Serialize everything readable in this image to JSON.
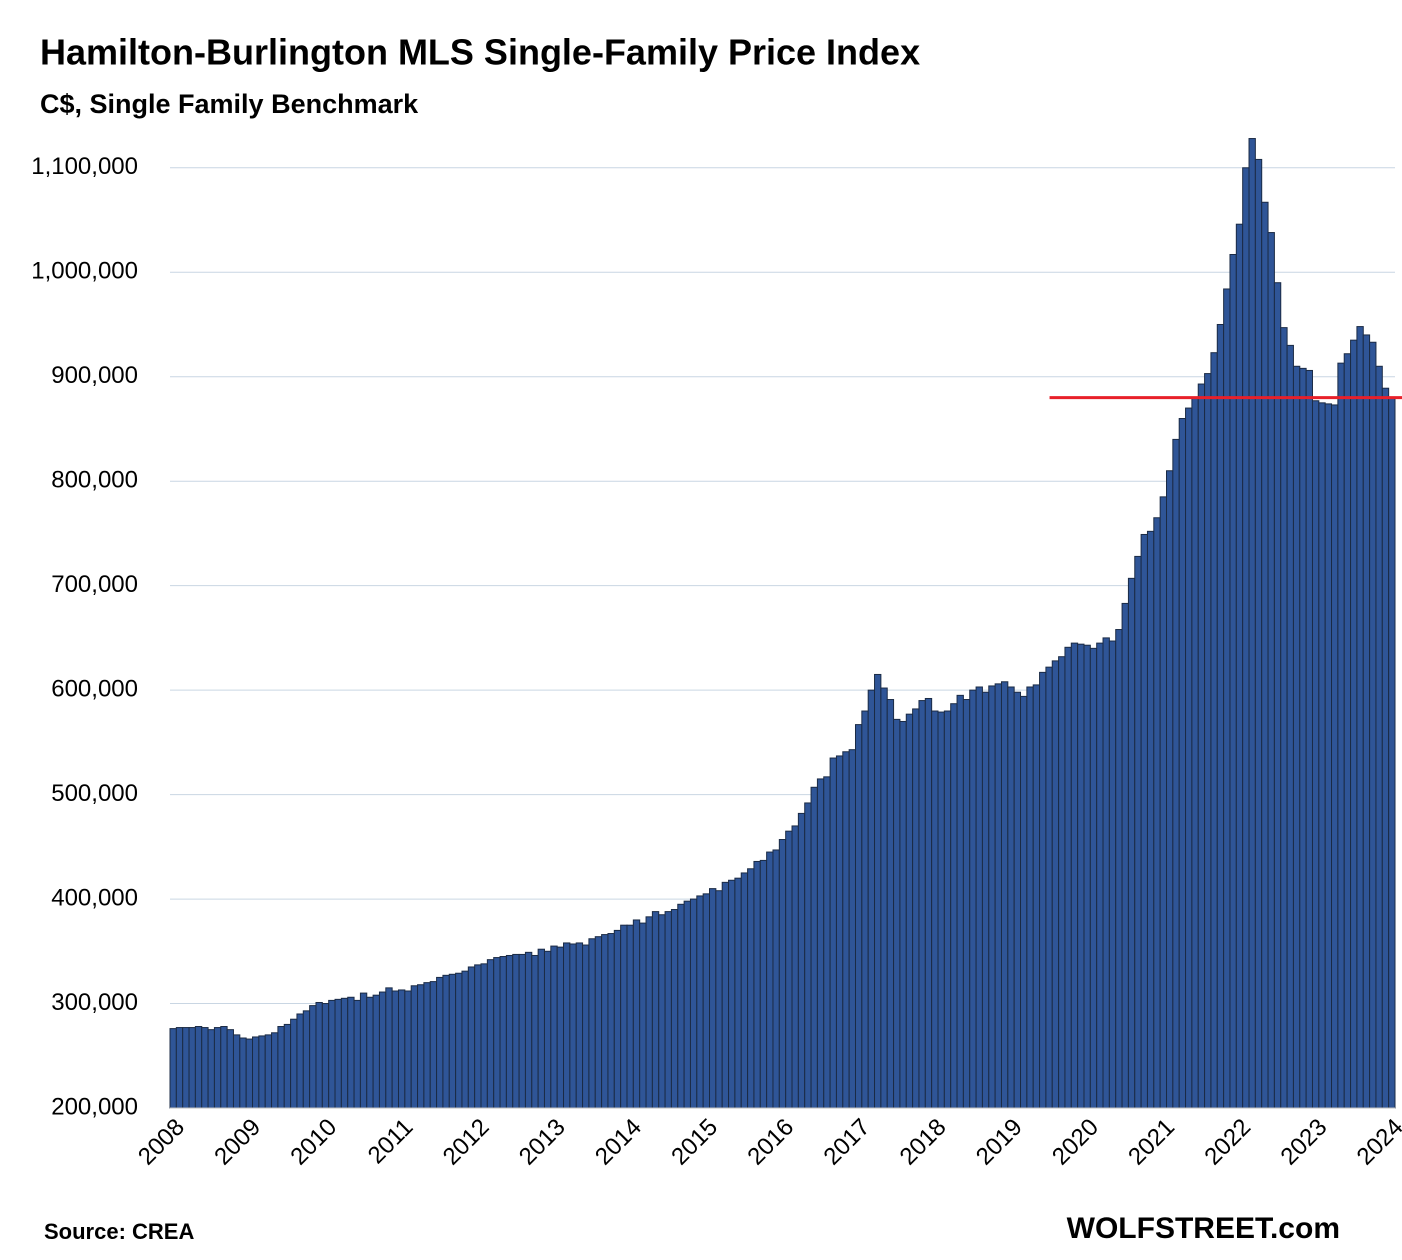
{
  "chart_data": {
    "type": "bar",
    "title": "Hamilton-Burlington MLS Single-Family Price Index",
    "subtitle": "C$, Single Family Benchmark",
    "source": "Source: CREA",
    "brand": "WOLFSTREET.com",
    "color": "#2f5597",
    "edge_color": "#1b2b45",
    "grid": true,
    "reference_line": {
      "value": 880000,
      "color": "#e8202a"
    },
    "ylim": [
      200000,
      1140000
    ],
    "yticks": [
      {
        "value": 200000,
        "label": "200,000"
      },
      {
        "value": 300000,
        "label": "300,000"
      },
      {
        "value": 400000,
        "label": "400,000"
      },
      {
        "value": 500000,
        "label": "500,000"
      },
      {
        "value": 600000,
        "label": "600,000"
      },
      {
        "value": 700000,
        "label": "700,000"
      },
      {
        "value": 800000,
        "label": "800,000"
      },
      {
        "value": 900000,
        "label": "900,000"
      },
      {
        "value": 1000000,
        "label": "1,000,000"
      },
      {
        "value": 1100000,
        "label": "1,100,000"
      }
    ],
    "categories": [
      "2008",
      null,
      null,
      null,
      null,
      null,
      null,
      null,
      null,
      null,
      null,
      null,
      "2009",
      null,
      null,
      null,
      null,
      null,
      null,
      null,
      null,
      null,
      null,
      null,
      "2010",
      null,
      null,
      null,
      null,
      null,
      null,
      null,
      null,
      null,
      null,
      null,
      "2011",
      null,
      null,
      null,
      null,
      null,
      null,
      null,
      null,
      null,
      null,
      null,
      "2012",
      null,
      null,
      null,
      null,
      null,
      null,
      null,
      null,
      null,
      null,
      null,
      "2013",
      null,
      null,
      null,
      null,
      null,
      null,
      null,
      null,
      null,
      null,
      null,
      "2014",
      null,
      null,
      null,
      null,
      null,
      null,
      null,
      null,
      null,
      null,
      null,
      "2015",
      null,
      null,
      null,
      null,
      null,
      null,
      null,
      null,
      null,
      null,
      null,
      "2016",
      null,
      null,
      null,
      null,
      null,
      null,
      null,
      null,
      null,
      null,
      null,
      "2017",
      null,
      null,
      null,
      null,
      null,
      null,
      null,
      null,
      null,
      null,
      null,
      "2018",
      null,
      null,
      null,
      null,
      null,
      null,
      null,
      null,
      null,
      null,
      null,
      "2019",
      null,
      null,
      null,
      null,
      null,
      null,
      null,
      null,
      null,
      null,
      null,
      "2020",
      null,
      null,
      null,
      null,
      null,
      null,
      null,
      null,
      null,
      null,
      null,
      "2021",
      null,
      null,
      null,
      null,
      null,
      null,
      null,
      null,
      null,
      null,
      null,
      "2022",
      null,
      null,
      null,
      null,
      null,
      null,
      null,
      null,
      null,
      null,
      null,
      "2023",
      null,
      null,
      null,
      null,
      null,
      null,
      null,
      null,
      null,
      null,
      null,
      "2024"
    ],
    "values": [
      276000,
      277000,
      277000,
      277000,
      278000,
      277000,
      275000,
      277000,
      278000,
      275000,
      270000,
      267000,
      266000,
      268000,
      269000,
      270000,
      272000,
      278000,
      280000,
      285000,
      290000,
      293000,
      298000,
      301000,
      300000,
      303000,
      304000,
      305000,
      306000,
      303000,
      310000,
      306000,
      308000,
      311000,
      315000,
      312000,
      313000,
      312000,
      317000,
      318000,
      320000,
      321000,
      325000,
      327000,
      328000,
      329000,
      331000,
      335000,
      337000,
      338000,
      342000,
      344000,
      345000,
      346000,
      347000,
      347000,
      349000,
      346000,
      352000,
      350000,
      355000,
      354000,
      358000,
      357000,
      358000,
      356000,
      362000,
      364000,
      366000,
      367000,
      370000,
      375000,
      375000,
      380000,
      377000,
      383000,
      388000,
      385000,
      388000,
      390000,
      395000,
      398000,
      400000,
      403000,
      405000,
      410000,
      408000,
      416000,
      418000,
      420000,
      425000,
      429000,
      436000,
      437000,
      445000,
      447000,
      457000,
      465000,
      470000,
      482000,
      492000,
      507000,
      515000,
      517000,
      535000,
      537000,
      541000,
      543000,
      567000,
      580000,
      600000,
      615000,
      602000,
      591000,
      572000,
      570000,
      577000,
      582000,
      590000,
      592000,
      580000,
      579000,
      580000,
      587000,
      595000,
      591000,
      600000,
      603000,
      598000,
      604000,
      606000,
      608000,
      603000,
      598000,
      594000,
      603000,
      605000,
      617000,
      622000,
      628000,
      632000,
      641000,
      645000,
      644000,
      643000,
      640000,
      645000,
      650000,
      647000,
      658000,
      683000,
      707000,
      728000,
      749000,
      752000,
      765000,
      785000,
      810000,
      840000,
      860000,
      870000,
      880000,
      893000,
      903000,
      923000,
      950000,
      984000,
      1017000,
      1046000,
      1100000,
      1128000,
      1108000,
      1067000,
      1038000,
      990000,
      947000,
      930000,
      910000,
      908000,
      906000,
      877000,
      875000,
      874000,
      873000,
      913000,
      922000,
      935000,
      948000,
      940000,
      933000,
      910000,
      889000,
      880000
    ]
  }
}
